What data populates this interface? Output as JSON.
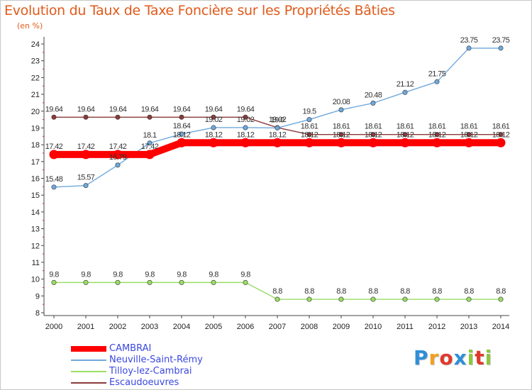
{
  "title": "Evolution du Taux de Taxe Foncière sur les Propriétés Bâties",
  "unit_label": "(en %)",
  "logo": {
    "text": "Proxiti",
    "colors": [
      "#2f8fd8",
      "#f0a020",
      "#e0392b",
      "#2f8fd8",
      "#8cc63f",
      "#e0392b",
      "#8cc63f"
    ]
  },
  "chart_data": {
    "type": "line",
    "x": [
      "2000",
      "2001",
      "2002",
      "2003",
      "2004",
      "2005",
      "2006",
      "2007",
      "2008",
      "2009",
      "2010",
      "2011",
      "2012",
      "2013",
      "2014"
    ],
    "ylim": [
      8,
      24
    ],
    "yticks": [
      "8",
      "9",
      "10",
      "11",
      "12",
      "13",
      "14",
      "15",
      "16",
      "17",
      "18",
      "19",
      "20",
      "21",
      "22",
      "23",
      "24"
    ],
    "grid": false,
    "legend_position": "bottom-left",
    "series": [
      {
        "name": "CAMBRAI",
        "color": "#ff0000",
        "values": [
          17.42,
          17.42,
          17.42,
          17.42,
          18.12,
          18.12,
          18.12,
          18.12,
          18.12,
          18.12,
          18.12,
          18.12,
          18.12,
          18.12,
          18.12
        ],
        "labels": [
          "17.42",
          "17.42",
          "17.42",
          "17.42",
          "18.12",
          "18.12",
          "18.12",
          "18.12",
          "18.12",
          "18.12",
          "18.12",
          "18.12",
          "18.12",
          "18.12",
          "18.12"
        ]
      },
      {
        "name": "Neuville-Saint-Rémy",
        "color": "#6fa8dc",
        "values": [
          15.48,
          15.57,
          16.79,
          18.1,
          18.64,
          19.02,
          19.02,
          19.0,
          19.5,
          20.08,
          20.48,
          21.12,
          21.75,
          23.75,
          23.75
        ],
        "labels": [
          "15.48",
          "15.57",
          "16.79",
          "18.1",
          "18.64",
          "19.02",
          "19.02",
          "19.0",
          "19.5",
          "20.08",
          "20.48",
          "21.12",
          "21.75",
          "23.75",
          "23.75"
        ]
      },
      {
        "name": "Tilloy-lez-Cambrai",
        "color": "#99dd66",
        "values": [
          9.8,
          9.8,
          9.8,
          9.8,
          9.8,
          9.8,
          9.8,
          8.8,
          8.8,
          8.8,
          8.8,
          8.8,
          8.8,
          8.8,
          8.8
        ],
        "labels": [
          "9.8",
          "9.8",
          "9.8",
          "9.8",
          "9.8",
          "9.8",
          "9.8",
          "8.8",
          "8.8",
          "8.8",
          "8.8",
          "8.8",
          "8.8",
          "8.8",
          "8.8"
        ]
      },
      {
        "name": "Escaudoeuvres",
        "color": "#8b3a3a",
        "values": [
          19.64,
          19.64,
          19.64,
          19.64,
          19.64,
          19.64,
          19.64,
          19.02,
          18.61,
          18.61,
          18.61,
          18.61,
          18.61,
          18.61,
          18.61
        ],
        "labels": [
          "19.64",
          "19.64",
          "19.64",
          "19.64",
          "19.64",
          "19.64",
          "19.64",
          "19.02",
          "18.61",
          "18.61",
          "18.61",
          "18.61",
          "18.61",
          "18.61",
          "18.61"
        ]
      }
    ]
  }
}
